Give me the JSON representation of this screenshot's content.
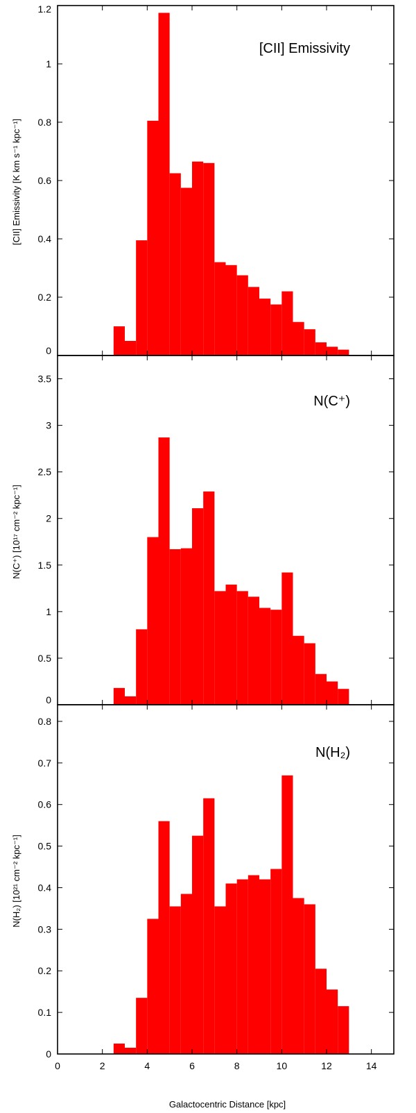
{
  "colors": {
    "bars": "#ff0000",
    "axes": "#000000",
    "background": "#ffffff"
  },
  "xaxis": {
    "label": "Galactocentric Distance [kpc]",
    "xlim": [
      0,
      15
    ],
    "ticks": [
      0,
      2,
      4,
      6,
      8,
      10,
      12,
      14
    ],
    "tick_labels": [
      "0",
      "2",
      "4",
      "6",
      "8",
      "10",
      "12",
      "14"
    ]
  },
  "chart_data": [
    {
      "type": "bar",
      "title": "[CII] Emissivity",
      "ylabel": "[CII] Emissivity [K km s⁻¹ kpc⁻¹]",
      "ylim": [
        0,
        1.2
      ],
      "yticks": [
        0,
        0.2,
        0.4,
        0.6,
        0.8,
        1,
        1.2
      ],
      "ytick_labels": [
        "0",
        "0.2",
        "0.4",
        "0.6",
        "0.8",
        "1",
        "1.2"
      ],
      "bin_width": 0.5,
      "x": [
        2.75,
        3.25,
        3.75,
        4.25,
        4.75,
        5.25,
        5.75,
        6.25,
        6.75,
        7.25,
        7.75,
        8.25,
        8.75,
        9.25,
        9.75,
        10.25,
        10.75,
        11.25,
        11.75,
        12.25,
        12.75
      ],
      "values": [
        0.1,
        0.05,
        0.395,
        0.805,
        1.175,
        0.625,
        0.575,
        0.665,
        0.66,
        0.32,
        0.31,
        0.275,
        0.235,
        0.195,
        0.175,
        0.22,
        0.115,
        0.09,
        0.045,
        0.03,
        0.02
      ]
    },
    {
      "type": "bar",
      "title": "N(C⁺)",
      "ylabel": "N(C⁺) [10¹⁷ cm⁻² kpc⁻¹]",
      "ylim": [
        0,
        3.75
      ],
      "yticks": [
        0,
        0.5,
        1,
        1.5,
        2,
        2.5,
        3,
        3.5
      ],
      "ytick_labels": [
        "0",
        "0.5",
        "1",
        "1.5",
        "2",
        "2.5",
        "3",
        "3.5"
      ],
      "bin_width": 0.5,
      "x": [
        2.75,
        3.25,
        3.75,
        4.25,
        4.75,
        5.25,
        5.75,
        6.25,
        6.75,
        7.25,
        7.75,
        8.25,
        8.75,
        9.25,
        9.75,
        10.25,
        10.75,
        11.25,
        11.75,
        12.25,
        12.75
      ],
      "values": [
        0.18,
        0.09,
        0.81,
        1.8,
        2.87,
        1.67,
        1.68,
        2.11,
        2.29,
        1.22,
        1.29,
        1.22,
        1.16,
        1.04,
        1.02,
        1.42,
        0.74,
        0.66,
        0.33,
        0.25,
        0.17
      ]
    },
    {
      "type": "bar",
      "title": "N(H₂)",
      "ylabel": "N(H₂) [10²¹ cm⁻² kpc⁻¹]",
      "ylim": [
        0,
        0.84
      ],
      "yticks": [
        0,
        0.1,
        0.2,
        0.3,
        0.4,
        0.5,
        0.6,
        0.7,
        0.8
      ],
      "ytick_labels": [
        "0",
        "0.1",
        "0.2",
        "0.3",
        "0.4",
        "0.5",
        "0.6",
        "0.7",
        "0.8"
      ],
      "bin_width": 0.5,
      "x": [
        2.75,
        3.25,
        3.75,
        4.25,
        4.75,
        5.25,
        5.75,
        6.25,
        6.75,
        7.25,
        7.75,
        8.25,
        8.75,
        9.25,
        9.75,
        10.25,
        10.75,
        11.25,
        11.75,
        12.25,
        12.75
      ],
      "values": [
        0.025,
        0.015,
        0.135,
        0.325,
        0.56,
        0.355,
        0.385,
        0.525,
        0.615,
        0.355,
        0.41,
        0.42,
        0.43,
        0.42,
        0.445,
        0.67,
        0.375,
        0.36,
        0.205,
        0.155,
        0.115
      ]
    }
  ]
}
